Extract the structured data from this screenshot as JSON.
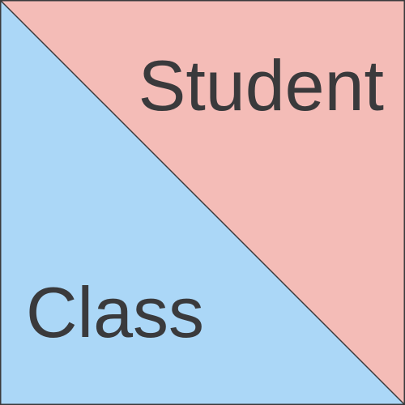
{
  "diagram": {
    "top_right_label": "Student",
    "bottom_left_label": "Class",
    "colors": {
      "top_right_fill": "#f4bcb7",
      "bottom_left_fill": "#abd7f7",
      "border": "#3a3a3c",
      "text": "#3a3a3c"
    }
  }
}
